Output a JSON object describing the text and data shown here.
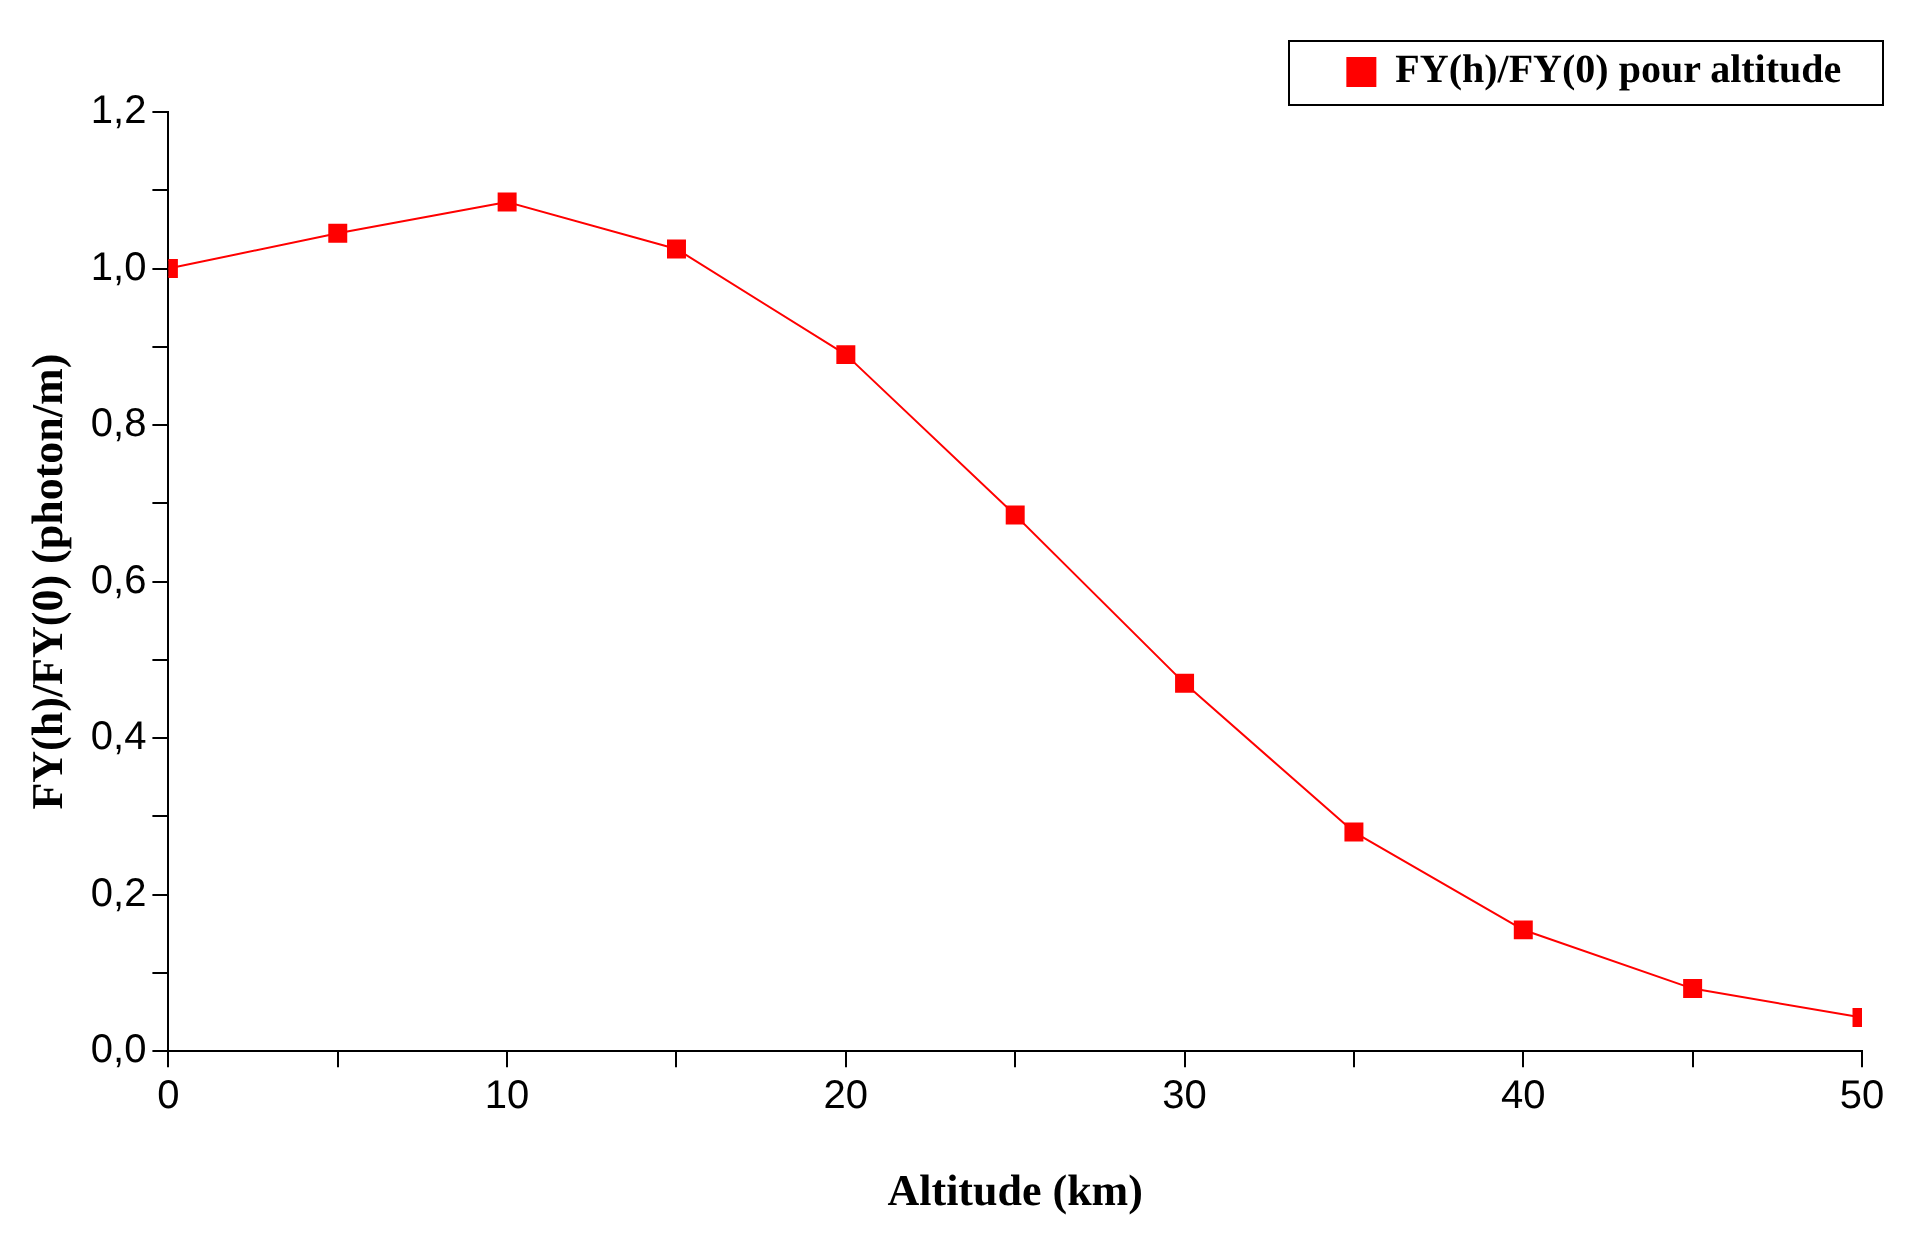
{
  "chart_data": {
    "type": "line",
    "xlabel": "Altitude (km)",
    "ylabel": "FY(h)/FY(0) (photon/m)",
    "x": [
      0,
      5,
      10,
      15,
      20,
      25,
      30,
      35,
      40,
      45,
      50
    ],
    "series": [
      {
        "name": "FY(h)/FY(0) pour altitude",
        "color": "#ff0000",
        "values": [
          1.0,
          1.045,
          1.085,
          1.025,
          0.89,
          0.685,
          0.47,
          0.28,
          0.155,
          0.08,
          0.043
        ]
      }
    ],
    "xlim": [
      0,
      50
    ],
    "xticks": [
      0,
      {
        "value": 5,
        "label": null
      },
      10,
      {
        "value": 15,
        "label": null
      },
      20,
      {
        "value": 25,
        "label": null
      },
      30,
      {
        "value": 35,
        "label": null
      },
      40,
      {
        "value": 45,
        "label": null
      },
      50
    ],
    "ylim": [
      0,
      1.2
    ],
    "yticks": [
      {
        "value": 0,
        "label": "0,0"
      },
      {
        "value": 0.1,
        "label": null
      },
      {
        "value": 0.2,
        "label": "0,2"
      },
      {
        "value": 0.3,
        "label": null
      },
      {
        "value": 0.4,
        "label": "0,4"
      },
      {
        "value": 0.5,
        "label": null
      },
      {
        "value": 0.6,
        "label": "0,6"
      },
      {
        "value": 0.7,
        "label": null
      },
      {
        "value": 0.8,
        "label": "0,8"
      },
      {
        "value": 0.9,
        "label": null
      },
      {
        "value": 1.0,
        "label": "1,0"
      },
      {
        "value": 1.1,
        "label": null
      },
      {
        "value": 1.2,
        "label": "1,2"
      }
    ],
    "grid": false,
    "legend": "top right",
    "marker": "square",
    "line_style": "solid"
  }
}
